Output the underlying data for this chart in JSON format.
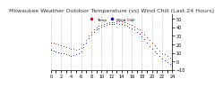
{
  "title": "Milwaukee Weather Outdoor Temperature (vs) Wind Chill (Last 24 Hours)",
  "bg_color": "#ffffff",
  "plot_bg": "#ffffff",
  "grid_color": "#aaaaaa",
  "ylim": [
    -10,
    55
  ],
  "yticks": [
    -10,
    0,
    10,
    20,
    30,
    40,
    50
  ],
  "xlim": [
    0,
    24
  ],
  "xtick_count": 25,
  "temp_color": "#dd0000",
  "windchill_color": "#0000cc",
  "temp_data": [
    [
      0,
      22
    ],
    [
      0.5,
      22
    ],
    [
      1,
      21
    ],
    [
      1.5,
      20
    ],
    [
      2,
      19
    ],
    [
      2.5,
      18
    ],
    [
      3,
      17
    ],
    [
      3.5,
      16
    ],
    [
      4,
      15
    ],
    [
      4.5,
      15
    ],
    [
      5,
      14
    ],
    [
      5.5,
      15
    ],
    [
      6,
      16
    ],
    [
      6.5,
      20
    ],
    [
      7,
      25
    ],
    [
      7.5,
      30
    ],
    [
      8,
      34
    ],
    [
      8.5,
      37
    ],
    [
      9,
      40
    ],
    [
      9.5,
      42
    ],
    [
      10,
      43
    ],
    [
      10.5,
      44
    ],
    [
      11,
      45
    ],
    [
      11.5,
      46
    ],
    [
      12,
      46
    ],
    [
      12.5,
      46
    ],
    [
      13,
      47
    ],
    [
      13.5,
      47
    ],
    [
      14,
      47
    ],
    [
      14.5,
      46
    ],
    [
      15,
      45
    ],
    [
      15.5,
      44
    ],
    [
      16,
      43
    ],
    [
      16.5,
      41
    ],
    [
      17,
      39
    ],
    [
      17.5,
      37
    ],
    [
      18,
      34
    ],
    [
      18.5,
      31
    ],
    [
      19,
      28
    ],
    [
      19.5,
      25
    ],
    [
      20,
      22
    ],
    [
      20.5,
      19
    ],
    [
      21,
      16
    ],
    [
      21.5,
      13
    ],
    [
      22,
      10
    ],
    [
      22.5,
      8
    ],
    [
      23,
      6
    ],
    [
      23.5,
      4
    ],
    [
      24,
      2
    ]
  ],
  "windchill_data": [
    [
      0,
      14
    ],
    [
      0.5,
      13
    ],
    [
      1,
      12
    ],
    [
      1.5,
      11
    ],
    [
      2,
      10
    ],
    [
      2.5,
      9
    ],
    [
      3,
      8
    ],
    [
      3.5,
      7
    ],
    [
      4,
      6
    ],
    [
      4.5,
      7
    ],
    [
      5,
      8
    ],
    [
      5.5,
      10
    ],
    [
      6,
      12
    ],
    [
      6.5,
      17
    ],
    [
      7,
      22
    ],
    [
      7.5,
      27
    ],
    [
      8,
      31
    ],
    [
      8.5,
      34
    ],
    [
      9,
      37
    ],
    [
      9.5,
      39
    ],
    [
      10,
      41
    ],
    [
      10.5,
      42
    ],
    [
      11,
      43
    ],
    [
      11.5,
      44
    ],
    [
      12,
      44
    ],
    [
      12.5,
      44
    ],
    [
      13,
      45
    ],
    [
      13.5,
      44
    ],
    [
      14,
      44
    ],
    [
      14.5,
      43
    ],
    [
      15,
      42
    ],
    [
      15.5,
      40
    ],
    [
      16,
      39
    ],
    [
      16.5,
      37
    ],
    [
      17,
      34
    ],
    [
      17.5,
      32
    ],
    [
      18,
      29
    ],
    [
      18.5,
      26
    ],
    [
      19,
      22
    ],
    [
      19.5,
      18
    ],
    [
      20,
      15
    ],
    [
      20.5,
      12
    ],
    [
      21,
      9
    ],
    [
      21.5,
      6
    ],
    [
      22,
      3
    ],
    [
      22.5,
      1
    ],
    [
      23,
      -1
    ],
    [
      23.5,
      -3
    ],
    [
      24,
      -5
    ]
  ],
  "title_fontsize": 4.5,
  "axis_fontsize": 3.5,
  "marker_size": 1.2
}
